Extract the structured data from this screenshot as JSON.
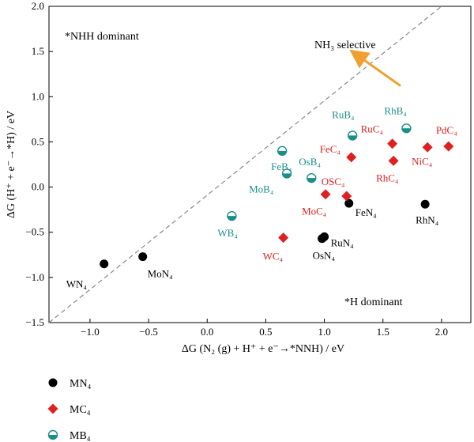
{
  "chart_data": {
    "type": "scatter",
    "xlabel": "ΔG (N₂ (g) + H⁺ + e⁻→*NNH) / eV",
    "ylabel": "ΔG (H⁺ + e⁻→*H) / eV",
    "xlim": [
      -1.35,
      2.25
    ],
    "ylim": [
      -1.5,
      2.0
    ],
    "xticks": [
      "−1.0",
      "−0.5",
      "0.0",
      "0.5",
      "1.0",
      "1.5",
      "2.0"
    ],
    "xtick_values": [
      -1.0,
      -0.5,
      0.0,
      0.5,
      1.0,
      1.5,
      2.0
    ],
    "yticks": [
      "2.0",
      "1.5",
      "1.0",
      "0.5",
      "0.0",
      "−0.5",
      "−1.0",
      "−1.5"
    ],
    "ytick_values": [
      2.0,
      1.5,
      1.0,
      0.5,
      0.0,
      -0.5,
      -1.0,
      -1.5
    ],
    "grid": false,
    "legend_position": "bottom-left, below plot",
    "diagonal": {
      "from": [
        -1.35,
        -1.5
      ],
      "to": [
        2.0,
        2.0
      ],
      "style": "dashed",
      "color": "#888888"
    },
    "annotations": {
      "nhh": "*NHH dominant",
      "h": "*H dominant",
      "nh3": "NH₃ selective",
      "nh3_color": "#f0a030",
      "arrow_from": [
        1.65,
        1.12
      ],
      "arrow_to": [
        1.28,
        1.46
      ]
    },
    "series": [
      {
        "name": "MN₄",
        "marker": "circle",
        "color": "#000000",
        "points": [
          {
            "label": "WN₄",
            "x": -0.88,
            "y": -0.85
          },
          {
            "label": "MoN₄",
            "x": -0.55,
            "y": -0.77
          },
          {
            "label": "OsN₄",
            "x": 0.98,
            "y": -0.57
          },
          {
            "label": "RuN₄",
            "x": 1.0,
            "y": -0.55
          },
          {
            "label": "FeN₄",
            "x": 1.21,
            "y": -0.18
          },
          {
            "label": "RhN₄",
            "x": 1.86,
            "y": -0.19
          }
        ]
      },
      {
        "name": "MC₄",
        "marker": "diamond",
        "color": "#e02020",
        "points": [
          {
            "label": "WC₄",
            "x": 0.65,
            "y": -0.56
          },
          {
            "label": "MoC₄",
            "x": 1.01,
            "y": -0.08
          },
          {
            "label": "OSC₄",
            "x": 1.19,
            "y": -0.1
          },
          {
            "label": "FeC₄",
            "x": 1.23,
            "y": 0.33
          },
          {
            "label": "RuC₄",
            "x": 1.58,
            "y": 0.48
          },
          {
            "label": "RhC₄",
            "x": 1.59,
            "y": 0.29
          },
          {
            "label": "NiC₄",
            "x": 1.88,
            "y": 0.44
          },
          {
            "label": "PdC₄",
            "x": 2.06,
            "y": 0.45
          }
        ]
      },
      {
        "name": "MB₄",
        "marker": "half-circle",
        "color": "#1a8f8a",
        "points": [
          {
            "label": "WB₄",
            "x": 0.21,
            "y": -0.32
          },
          {
            "label": "FeB₄",
            "x": 0.64,
            "y": 0.4
          },
          {
            "label": "MoB₄",
            "x": 0.68,
            "y": 0.15
          },
          {
            "label": "OsB₄",
            "x": 0.89,
            "y": 0.1
          },
          {
            "label": "RuB₄",
            "x": 1.24,
            "y": 0.57
          },
          {
            "label": "RhB₄",
            "x": 1.7,
            "y": 0.65
          }
        ]
      }
    ]
  }
}
